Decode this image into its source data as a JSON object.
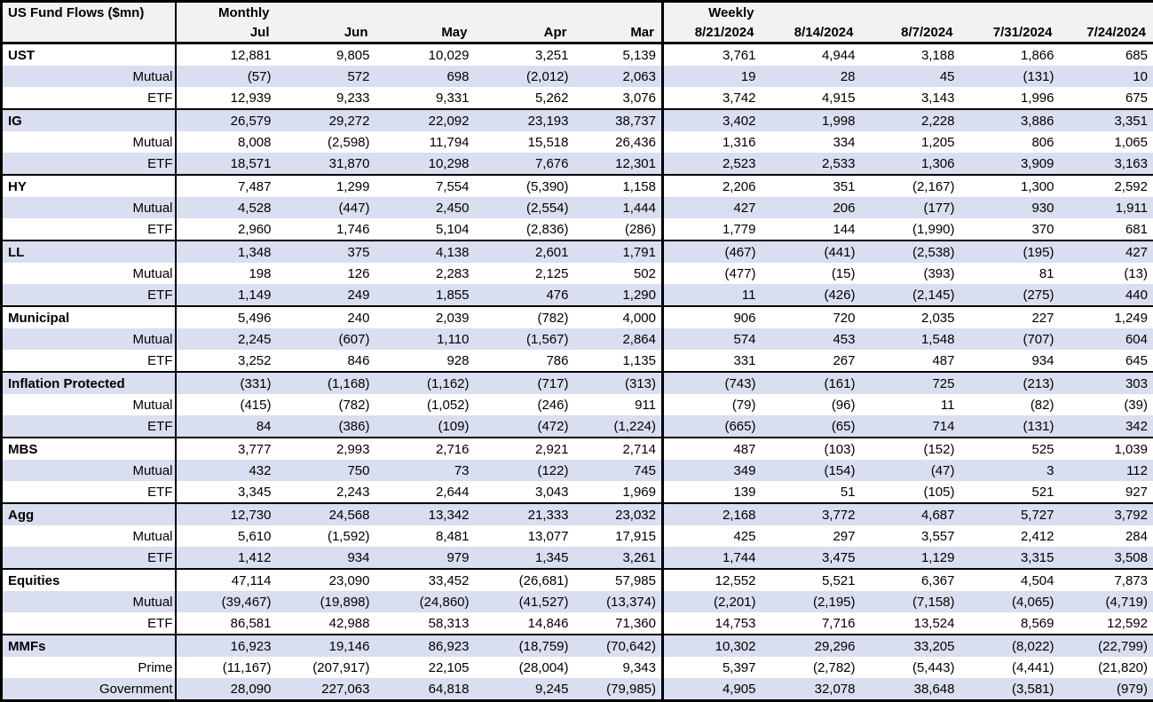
{
  "colors": {
    "row_shade": "#D9DEF0",
    "header_bg": "#F2F2F2",
    "border": "#000000",
    "text": "#000000"
  },
  "chart_data": {
    "type": "table",
    "title": "US Fund Flows ($mn)",
    "sections": [
      {
        "label": "Monthly",
        "columns": [
          "Jul",
          "Jun",
          "May",
          "Apr",
          "Mar"
        ]
      },
      {
        "label": "Weekly",
        "columns": [
          "8/21/2024",
          "8/14/2024",
          "8/7/2024",
          "7/31/2024",
          "7/24/2024"
        ]
      }
    ],
    "groups": [
      {
        "rows": [
          {
            "label": "UST",
            "monthly": [
              "12,881",
              "9,805",
              "10,029",
              "3,251",
              "5,139"
            ],
            "weekly": [
              "3,761",
              "4,944",
              "3,188",
              "1,866",
              "685"
            ]
          },
          {
            "label": "Mutual",
            "monthly": [
              "(57)",
              "572",
              "698",
              "(2,012)",
              "2,063"
            ],
            "weekly": [
              "19",
              "28",
              "45",
              "(131)",
              "10"
            ]
          },
          {
            "label": "ETF",
            "monthly": [
              "12,939",
              "9,233",
              "9,331",
              "5,262",
              "3,076"
            ],
            "weekly": [
              "3,742",
              "4,915",
              "3,143",
              "1,996",
              "675"
            ]
          }
        ]
      },
      {
        "rows": [
          {
            "label": "IG",
            "monthly": [
              "26,579",
              "29,272",
              "22,092",
              "23,193",
              "38,737"
            ],
            "weekly": [
              "3,402",
              "1,998",
              "2,228",
              "3,886",
              "3,351"
            ]
          },
          {
            "label": "Mutual",
            "monthly": [
              "8,008",
              "(2,598)",
              "11,794",
              "15,518",
              "26,436"
            ],
            "weekly": [
              "1,316",
              "334",
              "1,205",
              "806",
              "1,065"
            ]
          },
          {
            "label": "ETF",
            "monthly": [
              "18,571",
              "31,870",
              "10,298",
              "7,676",
              "12,301"
            ],
            "weekly": [
              "2,523",
              "2,533",
              "1,306",
              "3,909",
              "3,163"
            ]
          }
        ]
      },
      {
        "rows": [
          {
            "label": "HY",
            "monthly": [
              "7,487",
              "1,299",
              "7,554",
              "(5,390)",
              "1,158"
            ],
            "weekly": [
              "2,206",
              "351",
              "(2,167)",
              "1,300",
              "2,592"
            ]
          },
          {
            "label": "Mutual",
            "monthly": [
              "4,528",
              "(447)",
              "2,450",
              "(2,554)",
              "1,444"
            ],
            "weekly": [
              "427",
              "206",
              "(177)",
              "930",
              "1,911"
            ]
          },
          {
            "label": "ETF",
            "monthly": [
              "2,960",
              "1,746",
              "5,104",
              "(2,836)",
              "(286)"
            ],
            "weekly": [
              "1,779",
              "144",
              "(1,990)",
              "370",
              "681"
            ]
          }
        ]
      },
      {
        "rows": [
          {
            "label": "LL",
            "monthly": [
              "1,348",
              "375",
              "4,138",
              "2,601",
              "1,791"
            ],
            "weekly": [
              "(467)",
              "(441)",
              "(2,538)",
              "(195)",
              "427"
            ]
          },
          {
            "label": "Mutual",
            "monthly": [
              "198",
              "126",
              "2,283",
              "2,125",
              "502"
            ],
            "weekly": [
              "(477)",
              "(15)",
              "(393)",
              "81",
              "(13)"
            ]
          },
          {
            "label": "ETF",
            "monthly": [
              "1,149",
              "249",
              "1,855",
              "476",
              "1,290"
            ],
            "weekly": [
              "11",
              "(426)",
              "(2,145)",
              "(275)",
              "440"
            ]
          }
        ]
      },
      {
        "rows": [
          {
            "label": "Municipal",
            "monthly": [
              "5,496",
              "240",
              "2,039",
              "(782)",
              "4,000"
            ],
            "weekly": [
              "906",
              "720",
              "2,035",
              "227",
              "1,249"
            ]
          },
          {
            "label": "Mutual",
            "monthly": [
              "2,245",
              "(607)",
              "1,110",
              "(1,567)",
              "2,864"
            ],
            "weekly": [
              "574",
              "453",
              "1,548",
              "(707)",
              "604"
            ]
          },
          {
            "label": "ETF",
            "monthly": [
              "3,252",
              "846",
              "928",
              "786",
              "1,135"
            ],
            "weekly": [
              "331",
              "267",
              "487",
              "934",
              "645"
            ]
          }
        ]
      },
      {
        "rows": [
          {
            "label": "Inflation Protected",
            "monthly": [
              "(331)",
              "(1,168)",
              "(1,162)",
              "(717)",
              "(313)"
            ],
            "weekly": [
              "(743)",
              "(161)",
              "725",
              "(213)",
              "303"
            ]
          },
          {
            "label": "Mutual",
            "monthly": [
              "(415)",
              "(782)",
              "(1,052)",
              "(246)",
              "911"
            ],
            "weekly": [
              "(79)",
              "(96)",
              "11",
              "(82)",
              "(39)"
            ]
          },
          {
            "label": "ETF",
            "monthly": [
              "84",
              "(386)",
              "(109)",
              "(472)",
              "(1,224)"
            ],
            "weekly": [
              "(665)",
              "(65)",
              "714",
              "(131)",
              "342"
            ]
          }
        ]
      },
      {
        "rows": [
          {
            "label": "MBS",
            "monthly": [
              "3,777",
              "2,993",
              "2,716",
              "2,921",
              "2,714"
            ],
            "weekly": [
              "487",
              "(103)",
              "(152)",
              "525",
              "1,039"
            ]
          },
          {
            "label": "Mutual",
            "monthly": [
              "432",
              "750",
              "73",
              "(122)",
              "745"
            ],
            "weekly": [
              "349",
              "(154)",
              "(47)",
              "3",
              "112"
            ]
          },
          {
            "label": "ETF",
            "monthly": [
              "3,345",
              "2,243",
              "2,644",
              "3,043",
              "1,969"
            ],
            "weekly": [
              "139",
              "51",
              "(105)",
              "521",
              "927"
            ]
          }
        ]
      },
      {
        "rows": [
          {
            "label": "Agg",
            "monthly": [
              "12,730",
              "24,568",
              "13,342",
              "21,333",
              "23,032"
            ],
            "weekly": [
              "2,168",
              "3,772",
              "4,687",
              "5,727",
              "3,792"
            ]
          },
          {
            "label": "Mutual",
            "monthly": [
              "5,610",
              "(1,592)",
              "8,481",
              "13,077",
              "17,915"
            ],
            "weekly": [
              "425",
              "297",
              "3,557",
              "2,412",
              "284"
            ]
          },
          {
            "label": "ETF",
            "monthly": [
              "1,412",
              "934",
              "979",
              "1,345",
              "3,261"
            ],
            "weekly": [
              "1,744",
              "3,475",
              "1,129",
              "3,315",
              "3,508"
            ]
          }
        ]
      },
      {
        "rows": [
          {
            "label": "Equities",
            "monthly": [
              "47,114",
              "23,090",
              "33,452",
              "(26,681)",
              "57,985"
            ],
            "weekly": [
              "12,552",
              "5,521",
              "6,367",
              "4,504",
              "7,873"
            ]
          },
          {
            "label": "Mutual",
            "monthly": [
              "(39,467)",
              "(19,898)",
              "(24,860)",
              "(41,527)",
              "(13,374)"
            ],
            "weekly": [
              "(2,201)",
              "(2,195)",
              "(7,158)",
              "(4,065)",
              "(4,719)"
            ]
          },
          {
            "label": "ETF",
            "monthly": [
              "86,581",
              "42,988",
              "58,313",
              "14,846",
              "71,360"
            ],
            "weekly": [
              "14,753",
              "7,716",
              "13,524",
              "8,569",
              "12,592"
            ]
          }
        ]
      },
      {
        "rows": [
          {
            "label": "MMFs",
            "monthly": [
              "16,923",
              "19,146",
              "86,923",
              "(18,759)",
              "(70,642)"
            ],
            "weekly": [
              "10,302",
              "29,296",
              "33,205",
              "(8,022)",
              "(22,799)"
            ]
          },
          {
            "label": "Prime",
            "monthly": [
              "(11,167)",
              "(207,917)",
              "22,105",
              "(28,004)",
              "9,343"
            ],
            "weekly": [
              "5,397",
              "(2,782)",
              "(5,443)",
              "(4,441)",
              "(21,820)"
            ]
          },
          {
            "label": "Government",
            "monthly": [
              "28,090",
              "227,063",
              "64,818",
              "9,245",
              "(79,985)"
            ],
            "weekly": [
              "4,905",
              "32,078",
              "38,648",
              "(3,581)",
              "(979)"
            ]
          }
        ]
      }
    ]
  }
}
